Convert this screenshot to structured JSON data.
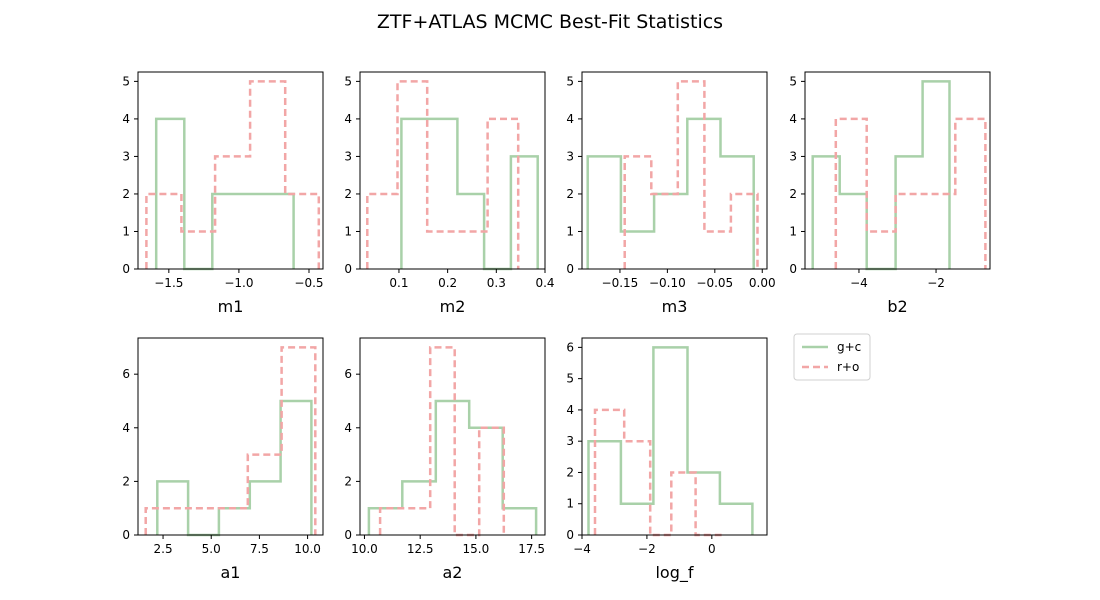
{
  "figure": {
    "title": "ZTF+ATLAS MCMC Best-Fit Statistics"
  },
  "legend": {
    "placement": "right of bottom row",
    "entries": [
      {
        "label": "g+c",
        "series": "g+c"
      },
      {
        "label": "r+o",
        "series": "r+o"
      }
    ]
  },
  "styles": {
    "g+c": {
      "color": "#a9d1a9",
      "dash": "none"
    },
    "r+o": {
      "color": "#f2a6a6",
      "dash": "7,4"
    }
  },
  "chart_data": [
    {
      "type": "histogram",
      "xlabel": "m1",
      "xlim": [
        -1.72,
        -0.4
      ],
      "ylim": [
        0,
        5.25
      ],
      "xticks": [
        -1.5,
        -1.0,
        -0.5
      ],
      "xtick_labels": [
        "−1.5",
        "−1.0",
        "−0.5"
      ],
      "yticks": [
        0,
        1,
        2,
        3,
        4,
        5
      ],
      "ytick_labels": [
        "0",
        "1",
        "2",
        "3",
        "4",
        "5"
      ],
      "series": [
        {
          "name": "g+c",
          "edges": [
            -1.59,
            -1.39,
            -1.19,
            -0.99,
            -0.79,
            -0.61
          ],
          "counts": [
            4,
            0,
            2,
            2,
            2
          ]
        },
        {
          "name": "r+o",
          "edges": [
            -1.66,
            -1.41,
            -1.17,
            -0.92,
            -0.67,
            -0.43
          ],
          "counts": [
            2,
            1,
            3,
            5,
            2
          ]
        }
      ]
    },
    {
      "type": "histogram",
      "xlabel": "m2",
      "xlim": [
        0.02,
        0.4
      ],
      "ylim": [
        0,
        5.25
      ],
      "xticks": [
        0.1,
        0.2,
        0.3,
        0.4
      ],
      "xtick_labels": [
        "0.1",
        "0.2",
        "0.3",
        "0.4"
      ],
      "yticks": [
        0,
        1,
        2,
        3,
        4,
        5
      ],
      "ytick_labels": [
        "0",
        "1",
        "2",
        "3",
        "4",
        "5"
      ],
      "series": [
        {
          "name": "g+c",
          "edges": [
            0.105,
            0.16,
            0.22,
            0.275,
            0.33,
            0.385
          ],
          "counts": [
            4,
            4,
            2,
            0,
            3
          ]
        },
        {
          "name": "r+o",
          "edges": [
            0.035,
            0.097,
            0.158,
            0.22,
            0.282,
            0.345
          ],
          "counts": [
            2,
            5,
            1,
            1,
            4
          ]
        }
      ]
    },
    {
      "type": "histogram",
      "xlabel": "m3",
      "xlim": [
        -0.19,
        0.005
      ],
      "ylim": [
        0,
        5.25
      ],
      "xticks": [
        -0.15,
        -0.1,
        -0.05,
        0.0
      ],
      "xtick_labels": [
        "−0.15",
        "−0.10",
        "−0.05",
        "0.00"
      ],
      "yticks": [
        0,
        1,
        2,
        3,
        4,
        5
      ],
      "ytick_labels": [
        "0",
        "1",
        "2",
        "3",
        "4",
        "5"
      ],
      "series": [
        {
          "name": "g+c",
          "edges": [
            -0.184,
            -0.149,
            -0.114,
            -0.079,
            -0.044,
            -0.009
          ],
          "counts": [
            3,
            1,
            2,
            4,
            3
          ]
        },
        {
          "name": "r+o",
          "edges": [
            -0.145,
            -0.117,
            -0.089,
            -0.061,
            -0.033,
            -0.005
          ],
          "counts": [
            3,
            2,
            5,
            1,
            2
          ]
        }
      ]
    },
    {
      "type": "histogram",
      "xlabel": "b2",
      "xlim": [
        -5.4,
        -0.6
      ],
      "ylim": [
        0,
        5.25
      ],
      "xticks": [
        -4,
        -2
      ],
      "xtick_labels": [
        "−4",
        "−2"
      ],
      "yticks": [
        0,
        1,
        2,
        3,
        4,
        5
      ],
      "ytick_labels": [
        "0",
        "1",
        "2",
        "3",
        "4",
        "5"
      ],
      "series": [
        {
          "name": "g+c",
          "edges": [
            -5.2,
            -4.5,
            -3.8,
            -3.05,
            -2.35,
            -1.65
          ],
          "counts": [
            3,
            2,
            0,
            3,
            5
          ]
        },
        {
          "name": "r+o",
          "edges": [
            -4.6,
            -3.8,
            -3.05,
            -2.25,
            -1.5,
            -0.72
          ],
          "counts": [
            4,
            1,
            2,
            2,
            4
          ]
        }
      ]
    },
    {
      "type": "histogram",
      "xlabel": "a1",
      "xlim": [
        1.2,
        10.8
      ],
      "ylim": [
        0,
        7.35
      ],
      "xticks": [
        2.5,
        5.0,
        7.5,
        10.0
      ],
      "xtick_labels": [
        "2.5",
        "5.0",
        "7.5",
        "10.0"
      ],
      "yticks": [
        0,
        2,
        4,
        6
      ],
      "ytick_labels": [
        "0",
        "2",
        "4",
        "6"
      ],
      "series": [
        {
          "name": "g+c",
          "edges": [
            2.2,
            3.8,
            5.4,
            7.0,
            8.6,
            10.2
          ],
          "counts": [
            2,
            0,
            1,
            2,
            5
          ]
        },
        {
          "name": "r+o",
          "edges": [
            1.6,
            3.35,
            5.1,
            6.9,
            8.65,
            10.4
          ],
          "counts": [
            1,
            1,
            1,
            3,
            7
          ]
        }
      ]
    },
    {
      "type": "histogram",
      "xlabel": "a2",
      "xlim": [
        9.8,
        18.1
      ],
      "ylim": [
        0,
        7.35
      ],
      "xticks": [
        10.0,
        12.5,
        15.0,
        17.5
      ],
      "xtick_labels": [
        "10.0",
        "12.5",
        "15.0",
        "17.5"
      ],
      "yticks": [
        0,
        2,
        4,
        6
      ],
      "ytick_labels": [
        "0",
        "2",
        "4",
        "6"
      ],
      "series": [
        {
          "name": "g+c",
          "edges": [
            10.2,
            11.7,
            13.2,
            14.7,
            16.2,
            17.7
          ],
          "counts": [
            1,
            2,
            5,
            4,
            1
          ]
        },
        {
          "name": "r+o",
          "edges": [
            10.7,
            11.85,
            12.95,
            14.05,
            15.15,
            16.25
          ],
          "counts": [
            1,
            1,
            7,
            0,
            4
          ]
        }
      ]
    },
    {
      "type": "histogram",
      "xlabel": "log_f",
      "xlim": [
        -4.0,
        1.7
      ],
      "ylim": [
        0,
        6.3
      ],
      "xticks": [
        -4,
        -2,
        0
      ],
      "xtick_labels": [
        "−4",
        "−2",
        "0"
      ],
      "yticks": [
        0,
        1,
        2,
        3,
        4,
        5,
        6
      ],
      "ytick_labels": [
        "0",
        "1",
        "2",
        "3",
        "4",
        "5",
        "6"
      ],
      "series": [
        {
          "name": "g+c",
          "edges": [
            -3.8,
            -2.8,
            -1.8,
            -0.75,
            0.25,
            1.25
          ],
          "counts": [
            3,
            1,
            6,
            2,
            1
          ]
        },
        {
          "name": "r+o",
          "edges": [
            -3.6,
            -2.7,
            -1.9,
            -1.25,
            -0.5,
            0.3
          ],
          "counts": [
            4,
            3,
            0,
            2,
            0
          ]
        }
      ]
    }
  ]
}
